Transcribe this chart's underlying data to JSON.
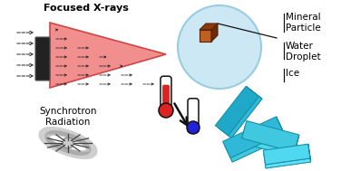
{
  "bg_color": "#ffffff",
  "label_focused_xrays": "Focused X-rays",
  "label_mineral": "Mineral\nParticle",
  "label_water": "Water\nDroplet",
  "label_ice": "Ice",
  "label_synchrotron": "Synchrotron\nRadiation",
  "beam_color": "#f08080",
  "droplet_color": "#cce8f4",
  "ice_colors": [
    "#40c8e0",
    "#50d8f0",
    "#30b8d8",
    "#60e0f8",
    "#20a8c8"
  ],
  "ice_edge": "#1890a8",
  "mineral_front": "#c06020",
  "mineral_top": "#8b3a10",
  "mineral_right": "#6b2a08",
  "mineral_edge": "#5a2000",
  "therm_red": "#dd2222",
  "therm_blue": "#2222dd",
  "text_color": "#000000",
  "font_size": 7.5
}
